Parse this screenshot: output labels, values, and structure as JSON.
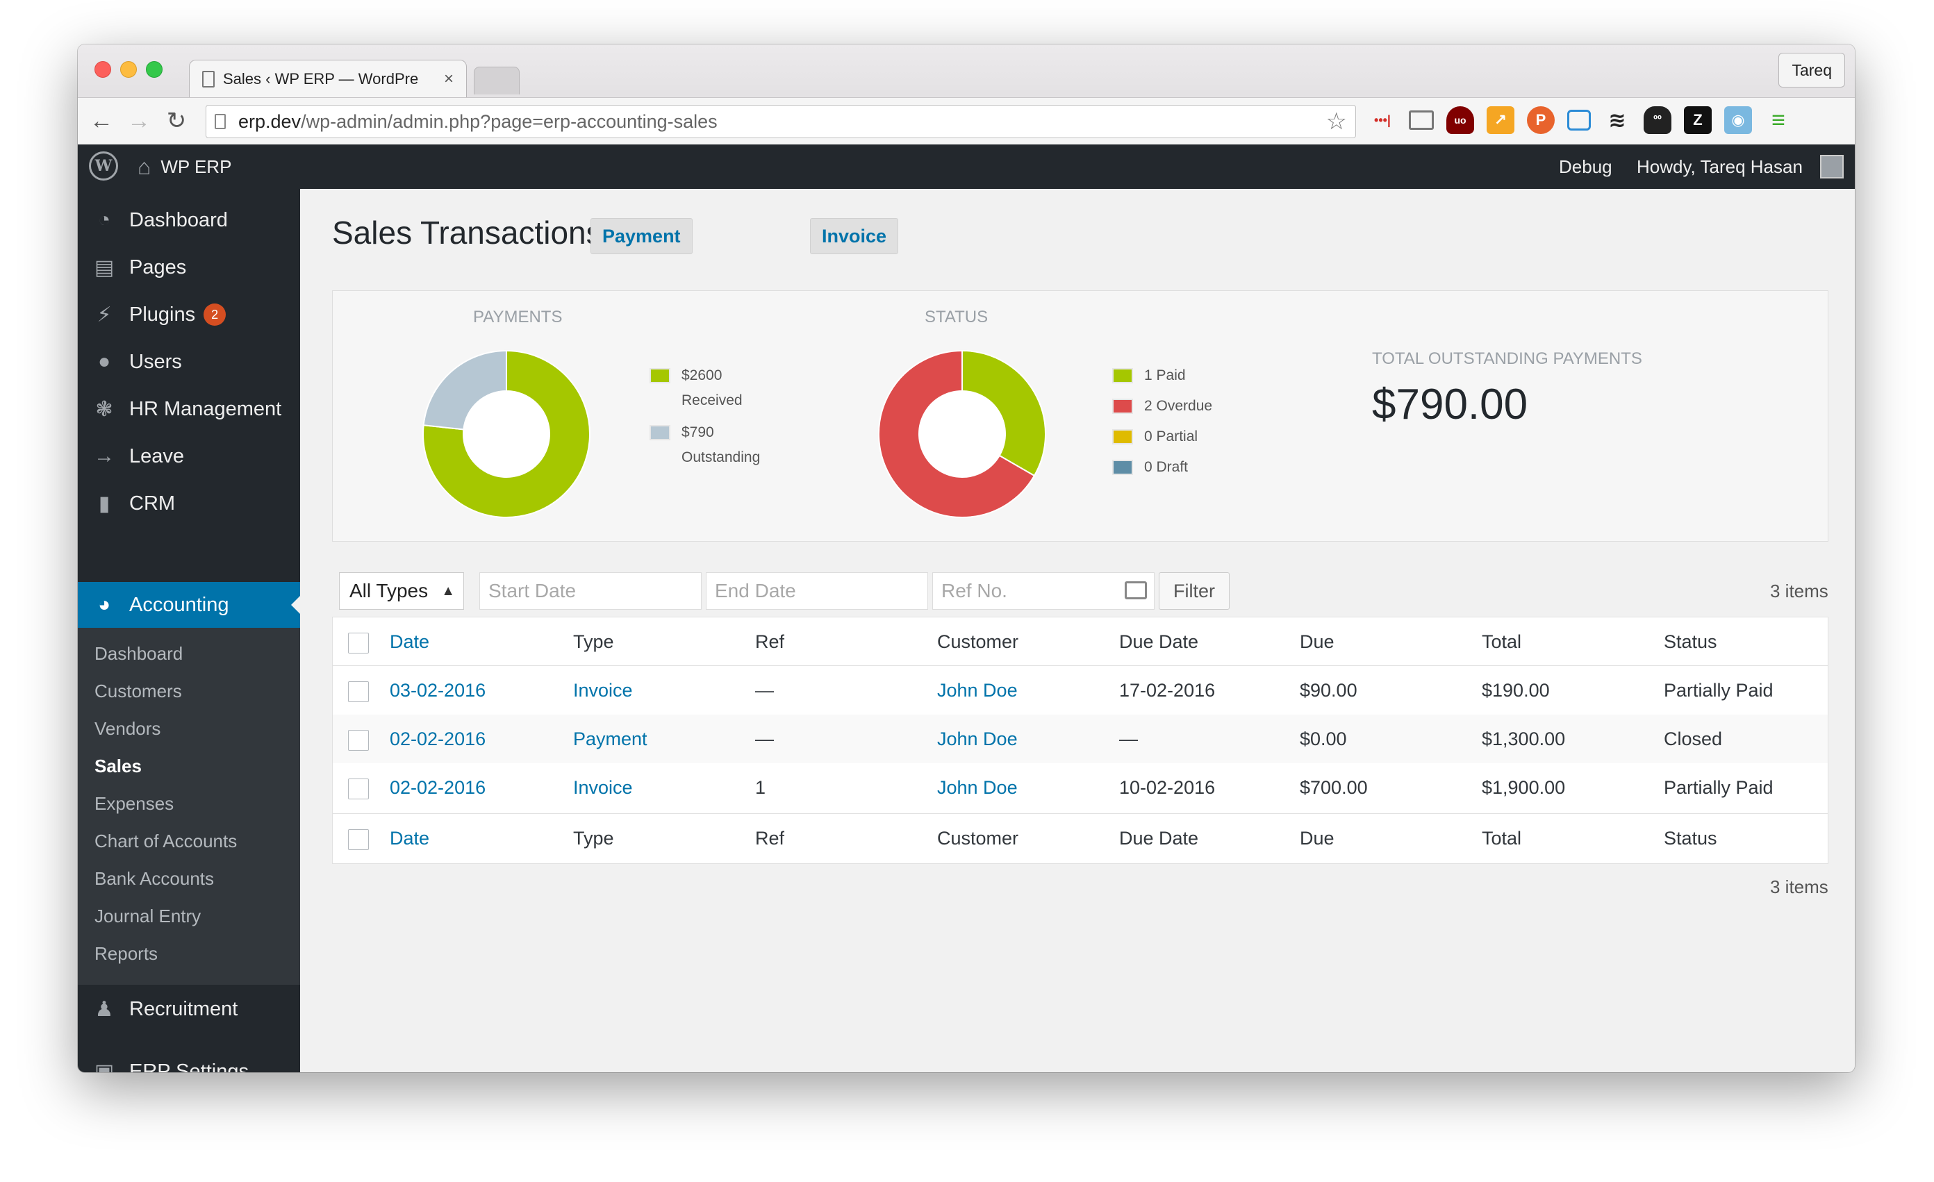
{
  "browser": {
    "tab_title": "Sales ‹ WP ERP — WordPre",
    "profile_name": "Tareq",
    "url_host": "erp.dev",
    "url_path": "/wp-admin/admin.php?page=erp-accounting-sales"
  },
  "admin_bar": {
    "site_name": "WP ERP",
    "debug_label": "Debug",
    "howdy": "Howdy, Tareq Hasan"
  },
  "sidebar": {
    "items": [
      {
        "label": "Dashboard",
        "icon": "dashboard-icon"
      },
      {
        "label": "Pages",
        "icon": "pages-icon"
      },
      {
        "label": "Plugins",
        "icon": "plugins-icon",
        "badge": "2"
      },
      {
        "label": "Users",
        "icon": "users-icon"
      },
      {
        "label": "HR Management",
        "icon": "hr-icon"
      },
      {
        "label": "Leave",
        "icon": "arrow-right-icon"
      },
      {
        "label": "CRM",
        "icon": "bar-chart-icon"
      },
      {
        "label": "Accounting",
        "icon": "pie-chart-icon",
        "current": true
      },
      {
        "label": "Recruitment",
        "icon": "recruitment-icon"
      },
      {
        "label": "ERP Settings",
        "icon": "settings-icon"
      }
    ],
    "submenu": [
      {
        "label": "Dashboard"
      },
      {
        "label": "Customers"
      },
      {
        "label": "Vendors"
      },
      {
        "label": "Sales",
        "current": true
      },
      {
        "label": "Expenses"
      },
      {
        "label": "Chart of Accounts"
      },
      {
        "label": "Bank Accounts"
      },
      {
        "label": "Journal Entry"
      },
      {
        "label": "Reports"
      }
    ]
  },
  "page": {
    "title": "Sales Transactions",
    "actions": [
      "Payment",
      "Invoice"
    ]
  },
  "summary": {
    "payments": {
      "heading": "Payments",
      "legend": [
        {
          "amount": "$2600",
          "label": "Received",
          "color": "#a5c700"
        },
        {
          "amount": "$790",
          "label": "Outstanding",
          "color": "#b6c7d3"
        }
      ],
      "values": [
        2600,
        790
      ]
    },
    "status": {
      "heading": "Status",
      "legend": [
        {
          "label": "1 Paid",
          "color": "#a5c700"
        },
        {
          "label": "2 Overdue",
          "color": "#dd4b4b"
        },
        {
          "label": "0 Partial",
          "color": "#dfbb00"
        },
        {
          "label": "0 Draft",
          "color": "#5e8da6"
        }
      ],
      "values": [
        1,
        2,
        0,
        0
      ]
    },
    "outstanding": {
      "heading": "Total Outstanding Payments",
      "amount": "$790.00"
    }
  },
  "filters": {
    "type_selected": "All Types",
    "start_date_placeholder": "Start Date",
    "end_date_placeholder": "End Date",
    "ref_placeholder": "Ref No.",
    "filter_button": "Filter",
    "items_count": "3 items"
  },
  "table": {
    "columns": [
      "Date",
      "Type",
      "Ref",
      "Customer",
      "Due Date",
      "Due",
      "Total",
      "Status"
    ],
    "rows": [
      [
        "03-02-2016",
        "Invoice",
        "—",
        "John Doe",
        "17-02-2016",
        "$90.00",
        "$190.00",
        "Partially Paid"
      ],
      [
        "02-02-2016",
        "Payment",
        "—",
        "John Doe",
        "—",
        "$0.00",
        "$1,300.00",
        "Closed"
      ],
      [
        "02-02-2016",
        "Invoice",
        "1",
        "John Doe",
        "10-02-2016",
        "$700.00",
        "$1,900.00",
        "Partially Paid"
      ]
    ]
  }
}
